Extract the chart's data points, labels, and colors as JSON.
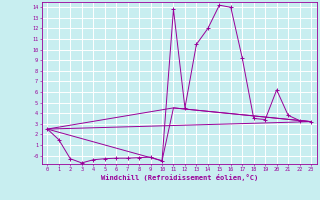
{
  "xlabel": "Windchill (Refroidissement éolien,°C)",
  "ylabel": "",
  "background_color": "#c8eef0",
  "line_color": "#990099",
  "grid_color": "#ffffff",
  "xlim": [
    -0.5,
    23.5
  ],
  "ylim": [
    -0.8,
    14.5
  ],
  "xtick_vals": [
    0,
    1,
    2,
    3,
    4,
    5,
    6,
    7,
    8,
    9,
    10,
    11,
    12,
    13,
    14,
    15,
    16,
    17,
    18,
    19,
    20,
    21,
    22,
    23
  ],
  "ytick_vals": [
    14,
    13,
    12,
    11,
    10,
    9,
    8,
    7,
    6,
    5,
    4,
    3,
    2,
    1,
    0
  ],
  "ytick_labels": [
    "14",
    "13",
    "12",
    "11",
    "10",
    "9",
    "8",
    "7",
    "6",
    "5",
    "4",
    "3",
    "2",
    "1",
    "-0"
  ],
  "series_main": [
    [
      0,
      2.5
    ],
    [
      1,
      1.5
    ],
    [
      2,
      -0.3
    ],
    [
      3,
      -0.7
    ],
    [
      4,
      -0.4
    ],
    [
      5,
      -0.3
    ],
    [
      6,
      -0.25
    ],
    [
      7,
      -0.25
    ],
    [
      8,
      -0.2
    ],
    [
      9,
      -0.15
    ],
    [
      10,
      -0.5
    ],
    [
      11,
      13.8
    ],
    [
      12,
      4.5
    ],
    [
      13,
      10.5
    ],
    [
      14,
      12.0
    ],
    [
      15,
      14.2
    ],
    [
      16,
      14.0
    ],
    [
      17,
      9.2
    ],
    [
      18,
      3.5
    ],
    [
      19,
      3.4
    ],
    [
      20,
      6.2
    ],
    [
      21,
      3.8
    ],
    [
      22,
      3.3
    ],
    [
      23,
      3.2
    ]
  ],
  "series_line1": [
    [
      0,
      2.5
    ],
    [
      23,
      3.2
    ]
  ],
  "series_line2": [
    [
      0,
      2.5
    ],
    [
      11,
      4.5
    ],
    [
      23,
      3.2
    ]
  ],
  "series_line3": [
    [
      0,
      2.5
    ],
    [
      10,
      -0.5
    ],
    [
      11,
      4.5
    ],
    [
      23,
      3.2
    ]
  ]
}
